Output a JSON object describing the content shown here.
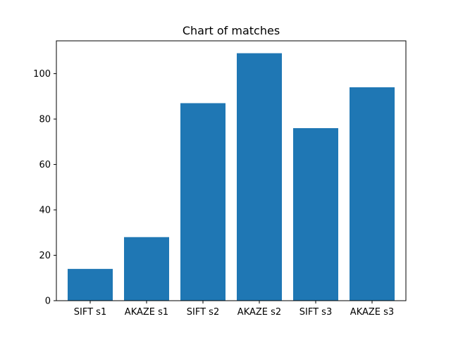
{
  "chart_data": {
    "type": "bar",
    "title": "Chart of matches",
    "xlabel": "",
    "ylabel": "",
    "categories": [
      "SIFT s1",
      "AKAZE s1",
      "SIFT s2",
      "AKAZE s2",
      "SIFT s3",
      "AKAZE s3"
    ],
    "values": [
      14,
      28,
      87,
      109,
      76,
      94
    ],
    "ylim": [
      0,
      114.45
    ],
    "yticks": [
      0,
      20,
      40,
      60,
      80,
      100
    ],
    "bar_color": "#1f77b4",
    "grid": false,
    "legend": "none"
  }
}
